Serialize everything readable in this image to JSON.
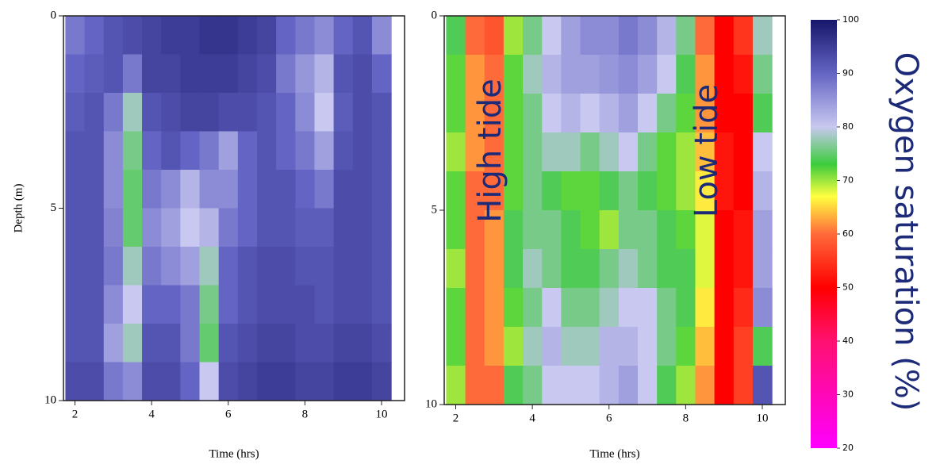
{
  "chart_data": [
    {
      "type": "heatmap",
      "xlabel": "Time (hrs)",
      "ylabel": "Depth (m)",
      "xlim": [
        1.7,
        10.6
      ],
      "ylim": [
        0,
        10
      ],
      "y_inverted": true,
      "xticks": [
        2,
        4,
        6,
        8,
        10
      ],
      "yticks": [
        0,
        5,
        10
      ],
      "x": [
        2,
        2.5,
        3,
        3.5,
        4,
        4.5,
        5,
        5.5,
        6,
        6.5,
        7,
        7.5,
        8,
        8.5,
        9,
        9.5,
        10
      ],
      "y": [
        0.5,
        1.5,
        2.5,
        3.5,
        4.5,
        5.5,
        6.5,
        7.5,
        8.5,
        9.5
      ],
      "z": [
        [
          88,
          90,
          92,
          93,
          94,
          95,
          95,
          96,
          96,
          95,
          94,
          90,
          88,
          86,
          90,
          92,
          86
        ],
        [
          90,
          91,
          92,
          88,
          94,
          94,
          95,
          95,
          95,
          94,
          93,
          88,
          85,
          82,
          92,
          93,
          90
        ],
        [
          91,
          92,
          88,
          78,
          92,
          93,
          94,
          94,
          93,
          93,
          92,
          90,
          86,
          80,
          91,
          93,
          92
        ],
        [
          92,
          92,
          86,
          76,
          90,
          92,
          90,
          88,
          84,
          90,
          92,
          90,
          88,
          84,
          92,
          93,
          92
        ],
        [
          92,
          92,
          86,
          75,
          88,
          86,
          82,
          86,
          86,
          90,
          92,
          92,
          90,
          88,
          93,
          93,
          92
        ],
        [
          92,
          92,
          87,
          75,
          86,
          84,
          80,
          82,
          88,
          90,
          92,
          92,
          91,
          91,
          93,
          93,
          92
        ],
        [
          92,
          92,
          88,
          78,
          88,
          86,
          84,
          78,
          90,
          92,
          93,
          93,
          92,
          92,
          93,
          93,
          92
        ],
        [
          92,
          92,
          86,
          80,
          90,
          90,
          88,
          76,
          90,
          92,
          93,
          93,
          93,
          92,
          93,
          93,
          92
        ],
        [
          92,
          92,
          84,
          78,
          92,
          92,
          88,
          75,
          92,
          93,
          94,
          94,
          93,
          93,
          94,
          94,
          93
        ],
        [
          93,
          93,
          88,
          86,
          93,
          93,
          90,
          80,
          93,
          94,
          95,
          95,
          94,
          94,
          95,
          95,
          94
        ]
      ]
    },
    {
      "type": "heatmap",
      "xlabel": "Time (hrs)",
      "xlim": [
        1.7,
        10.6
      ],
      "ylim": [
        0,
        10
      ],
      "y_inverted": true,
      "xticks": [
        2,
        4,
        6,
        8,
        10
      ],
      "yticks": [
        0,
        5,
        10
      ],
      "annotations": [
        "High tide",
        "Low tide"
      ],
      "x": [
        2,
        2.5,
        3,
        3.5,
        4,
        4.5,
        5,
        5.5,
        6,
        6.5,
        7,
        7.5,
        8,
        8.5,
        9,
        9.5,
        10
      ],
      "y": [
        0.5,
        1.5,
        2.5,
        3.5,
        4.5,
        5.5,
        6.5,
        7.5,
        8.5,
        9.5
      ],
      "z": [
        [
          74,
          60,
          58,
          70,
          76,
          80,
          84,
          86,
          86,
          88,
          86,
          82,
          76,
          60,
          50,
          55,
          78
        ],
        [
          72,
          62,
          60,
          72,
          78,
          82,
          84,
          84,
          85,
          86,
          84,
          80,
          74,
          62,
          50,
          52,
          76
        ],
        [
          72,
          62,
          60,
          72,
          76,
          80,
          82,
          80,
          82,
          84,
          80,
          76,
          72,
          62,
          50,
          50,
          74
        ],
        [
          70,
          62,
          60,
          72,
          76,
          78,
          78,
          76,
          78,
          80,
          76,
          72,
          70,
          64,
          52,
          50,
          80
        ],
        [
          72,
          60,
          60,
          72,
          76,
          74,
          72,
          72,
          74,
          76,
          74,
          72,
          70,
          66,
          52,
          50,
          82
        ],
        [
          72,
          60,
          62,
          74,
          76,
          76,
          74,
          72,
          70,
          76,
          76,
          74,
          72,
          68,
          50,
          52,
          84
        ],
        [
          70,
          60,
          62,
          74,
          78,
          76,
          74,
          74,
          76,
          78,
          76,
          74,
          74,
          68,
          50,
          52,
          84
        ],
        [
          72,
          60,
          62,
          72,
          76,
          80,
          76,
          76,
          78,
          80,
          80,
          76,
          74,
          66,
          50,
          54,
          86
        ],
        [
          72,
          60,
          62,
          70,
          78,
          82,
          78,
          78,
          82,
          82,
          80,
          76,
          72,
          64,
          50,
          56,
          74
        ],
        [
          70,
          60,
          60,
          74,
          76,
          80,
          80,
          80,
          82,
          84,
          80,
          74,
          70,
          62,
          50,
          56,
          92
        ]
      ],
      "colorbar": {
        "label": "Oxygen saturation (%)",
        "lim": [
          20,
          100
        ],
        "ticks": [
          100,
          90,
          80,
          70,
          60,
          50,
          40,
          30,
          20
        ],
        "colorscale": [
          [
            20,
            "#ff00ff"
          ],
          [
            40,
            "#ff1070"
          ],
          [
            50,
            "#ff0000"
          ],
          [
            60,
            "#ff6a3a"
          ],
          [
            67,
            "#ffff40"
          ],
          [
            73,
            "#3ccc3c"
          ],
          [
            80,
            "#c8c8f0"
          ],
          [
            90,
            "#6464c4"
          ],
          [
            100,
            "#16166a"
          ]
        ]
      }
    }
  ]
}
